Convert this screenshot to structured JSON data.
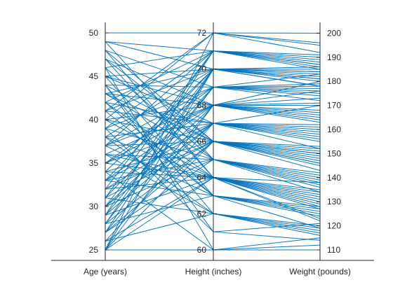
{
  "chart_data": {
    "type": "parallel_coordinates",
    "series_color": "#0072BD",
    "grid": false,
    "axes": [
      {
        "name": "Age (years)",
        "label": "Age (years)",
        "ylim": [
          25,
          50
        ],
        "ticks": [
          25,
          30,
          35,
          40,
          45,
          50
        ],
        "tick_labels": [
          "25",
          "30",
          "35",
          "40",
          "45",
          "50"
        ]
      },
      {
        "name": "Height (inches)",
        "label": "Height (inches)",
        "ylim": [
          60,
          72
        ],
        "ticks": [
          60,
          62,
          64,
          66,
          68,
          70,
          72
        ],
        "tick_labels": [
          "60",
          "62",
          "64",
          "66",
          "68",
          "70",
          "72"
        ]
      },
      {
        "name": "Weight (pounds)",
        "label": "Weight (pounds)",
        "ylim": [
          110,
          201
        ],
        "ticks": [
          110,
          120,
          130,
          140,
          150,
          160,
          170,
          180,
          190,
          200
        ],
        "tick_labels": [
          "110",
          "120",
          "130",
          "140",
          "150",
          "160",
          "170",
          "180",
          "190",
          "200"
        ]
      }
    ],
    "records": [
      [
        50,
        72,
        200
      ],
      [
        49,
        70,
        178
      ],
      [
        49,
        71,
        185
      ],
      [
        48,
        69,
        176
      ],
      [
        48,
        66,
        152
      ],
      [
        47,
        64,
        131
      ],
      [
        47,
        68,
        171
      ],
      [
        46,
        65,
        140
      ],
      [
        46,
        71,
        190
      ],
      [
        45,
        67,
        160
      ],
      [
        45,
        63,
        125
      ],
      [
        45,
        70,
        182
      ],
      [
        44,
        66,
        149
      ],
      [
        44,
        69,
        172
      ],
      [
        44,
        62,
        118
      ],
      [
        43,
        68,
        166
      ],
      [
        43,
        65,
        138
      ],
      [
        42,
        67,
        158
      ],
      [
        42,
        71,
        186
      ],
      [
        42,
        64,
        133
      ],
      [
        41,
        70,
        181
      ],
      [
        41,
        63,
        128
      ],
      [
        40,
        68,
        170
      ],
      [
        40,
        66,
        150
      ],
      [
        40,
        72,
        195
      ],
      [
        39,
        65,
        142
      ],
      [
        39,
        69,
        177
      ],
      [
        39,
        61,
        114
      ],
      [
        38,
        67,
        162
      ],
      [
        38,
        64,
        135
      ],
      [
        38,
        70,
        184
      ],
      [
        37,
        66,
        147
      ],
      [
        37,
        71,
        188
      ],
      [
        37,
        63,
        127
      ],
      [
        36,
        68,
        168
      ],
      [
        36,
        65,
        139
      ],
      [
        36,
        62,
        120
      ],
      [
        35,
        69,
        175
      ],
      [
        35,
        67,
        157
      ],
      [
        35,
        64,
        132
      ],
      [
        34,
        70,
        183
      ],
      [
        34,
        66,
        151
      ],
      [
        34,
        60,
        110
      ],
      [
        33,
        68,
        173
      ],
      [
        33,
        65,
        141
      ],
      [
        33,
        63,
        126
      ],
      [
        32,
        71,
        187
      ],
      [
        32,
        67,
        159
      ],
      [
        32,
        64,
        134
      ],
      [
        31,
        69,
        179
      ],
      [
        31,
        66,
        146
      ],
      [
        31,
        62,
        119
      ],
      [
        30,
        70,
        180
      ],
      [
        30,
        68,
        165
      ],
      [
        30,
        65,
        137
      ],
      [
        29,
        67,
        155
      ],
      [
        29,
        64,
        130
      ],
      [
        29,
        71,
        189
      ],
      [
        28,
        69,
        174
      ],
      [
        28,
        66,
        148
      ],
      [
        28,
        63,
        124
      ],
      [
        27,
        70,
        181
      ],
      [
        27,
        68,
        167
      ],
      [
        27,
        65,
        136
      ],
      [
        26,
        67,
        161
      ],
      [
        26,
        64,
        129
      ],
      [
        26,
        62,
        117
      ],
      [
        25,
        72,
        192
      ],
      [
        25,
        70,
        178
      ],
      [
        25,
        68,
        163
      ],
      [
        25,
        66,
        145
      ],
      [
        25,
        64,
        122
      ],
      [
        25,
        60,
        112
      ],
      [
        46,
        60,
        115
      ],
      [
        44,
        61,
        121
      ],
      [
        42,
        63,
        119
      ],
      [
        40,
        64,
        123
      ],
      [
        38,
        62,
        116
      ],
      [
        36,
        64,
        128
      ],
      [
        34,
        64,
        138
      ],
      [
        32,
        66,
        153
      ],
      [
        30,
        67,
        156
      ],
      [
        48,
        64,
        127
      ],
      [
        47,
        66,
        143
      ],
      [
        45,
        68,
        180
      ],
      [
        43,
        70,
        186
      ],
      [
        41,
        72,
        196
      ],
      [
        39,
        71,
        191
      ],
      [
        37,
        69,
        183
      ],
      [
        35,
        68,
        176
      ],
      [
        33,
        70,
        184
      ],
      [
        31,
        71,
        187
      ],
      [
        29,
        69,
        178
      ],
      [
        27,
        66,
        150
      ],
      [
        49,
        65,
        134
      ],
      [
        43,
        66,
        146
      ],
      [
        41,
        67,
        152
      ],
      [
        37,
        68,
        164
      ],
      [
        33,
        67,
        170
      ],
      [
        28,
        70,
        185
      ]
    ]
  }
}
